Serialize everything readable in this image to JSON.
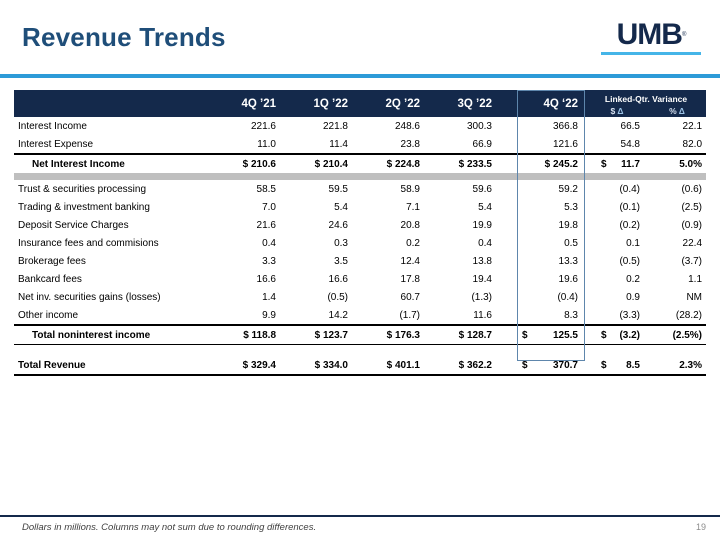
{
  "slide": {
    "title": "Revenue Trends",
    "footnote": "Dollars in millions. Columns may not sum due to rounding differences.",
    "page_number": "19"
  },
  "logo": {
    "text": "UMB",
    "registered_mark": "®"
  },
  "colors": {
    "navy": "#14294B",
    "title_blue": "#1F4E79",
    "accent_blue": "#2D9BD8",
    "logo_underline_blue": "#45B5E8",
    "highlight_box_blue": "#5E86AC",
    "band_gray": "#BFBFBF"
  },
  "table": {
    "column_headers": [
      "4Q ’21",
      "1Q ’22",
      "2Q ’22",
      "3Q ’22",
      "4Q ‘22"
    ],
    "variance_group": {
      "label": "Linked-Qtr. Variance",
      "sub_labels": [
        {
          "symbol": "$",
          "delta": "Δ"
        },
        {
          "symbol": "%",
          "delta": "Δ"
        }
      ]
    },
    "rows": [
      {
        "label": "Interest Income",
        "values": [
          "221.6",
          "221.8",
          "248.6",
          "300.3",
          "366.8",
          "66.5",
          "22.1"
        ]
      },
      {
        "label": "Interest Expense",
        "values": [
          "11.0",
          "11.4",
          "23.8",
          "66.9",
          "121.6",
          "54.8",
          "82.0"
        ]
      },
      {
        "label": "Net Interest Income",
        "style": "subtotal",
        "rule_top": true,
        "values": [
          "$ 210.6",
          "$ 210.4",
          "$ 224.8",
          "$ 233.5",
          "$ 245.2",
          {
            "d": "$",
            "v": "11.7"
          },
          "5.0%"
        ]
      },
      {
        "type": "band"
      },
      {
        "label": "Trust & securities processing",
        "values": [
          "58.5",
          "59.5",
          "58.9",
          "59.6",
          "59.2",
          "(0.4)",
          "(0.6)"
        ]
      },
      {
        "label": "Trading & investment banking",
        "values": [
          "7.0",
          "5.4",
          "7.1",
          "5.4",
          "5.3",
          "(0.1)",
          "(2.5)"
        ]
      },
      {
        "label": "Deposit Service Charges",
        "values": [
          "21.6",
          "24.6",
          "20.8",
          "19.9",
          "19.8",
          "(0.2)",
          "(0.9)"
        ]
      },
      {
        "label": "Insurance fees and commisions",
        "values": [
          "0.4",
          "0.3",
          "0.2",
          "0.4",
          "0.5",
          "0.1",
          "22.4"
        ]
      },
      {
        "label": "Brokerage fees",
        "values": [
          "3.3",
          "3.5",
          "12.4",
          "13.8",
          "13.3",
          "(0.5)",
          "(3.7)"
        ]
      },
      {
        "label": "Bankcard fees",
        "values": [
          "16.6",
          "16.6",
          "17.8",
          "19.4",
          "19.6",
          "0.2",
          "1.1"
        ]
      },
      {
        "label": "Net inv. securities gains (losses)",
        "values": [
          "1.4",
          "(0.5)",
          "60.7",
          "(1.3)",
          "(0.4)",
          "0.9",
          "NM"
        ]
      },
      {
        "label": "Other income",
        "values": [
          "9.9",
          "14.2",
          "(1.7)",
          "11.6",
          "8.3",
          "(3.3)",
          "(28.2)"
        ]
      },
      {
        "label": "Total noninterest income",
        "style": "subtotal",
        "rule_top": true,
        "rule_bottom": "thin",
        "values": [
          "$ 118.8",
          "$ 123.7",
          "$ 176.3",
          "$ 128.7",
          {
            "d": "$",
            "v": "125.5"
          },
          {
            "d": "$",
            "v": "(3.2)"
          },
          "(2.5%)"
        ]
      },
      {
        "type": "spacer"
      },
      {
        "label": "Total Revenue",
        "style": "total",
        "rule_bottom": "thick",
        "values": [
          "$ 329.4",
          "$ 334.0",
          "$ 401.1",
          "$ 362.2",
          {
            "d": "$",
            "v": "370.7"
          },
          {
            "d": "$",
            "v": "8.5"
          },
          "2.3%"
        ]
      }
    ]
  }
}
